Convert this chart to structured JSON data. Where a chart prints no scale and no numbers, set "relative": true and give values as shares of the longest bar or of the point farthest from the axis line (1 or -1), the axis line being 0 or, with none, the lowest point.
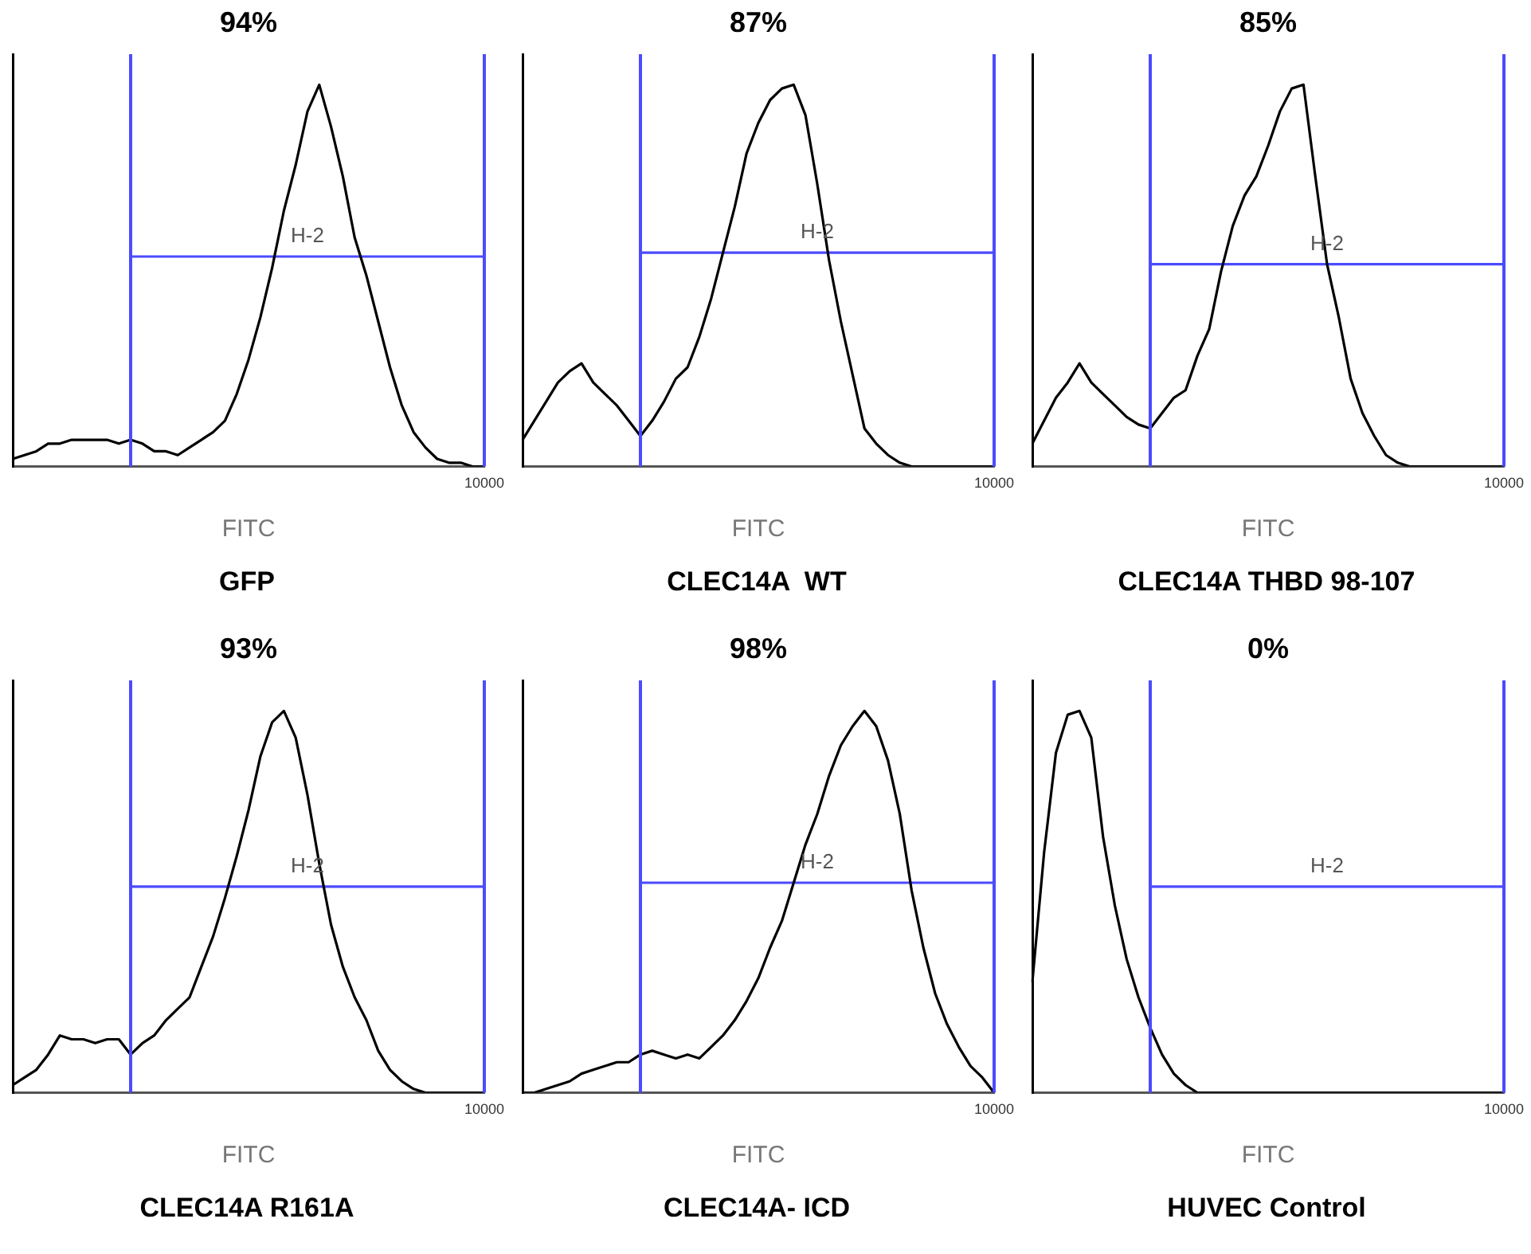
{
  "chart_data": [
    {
      "type": "line",
      "title": "GFP",
      "xlabel": "FITC",
      "relative": true,
      "grid": false,
      "legend": false,
      "marker": "none",
      "categories": [
        null,
        null,
        null,
        null,
        null,
        null,
        null,
        null,
        null,
        null,
        null,
        null,
        null,
        null,
        null,
        null,
        null,
        null,
        null,
        null,
        null,
        null,
        null,
        null,
        null,
        null,
        null,
        null,
        null,
        null,
        null,
        null,
        null,
        null,
        null,
        null,
        null,
        null,
        null,
        null,
        null
      ],
      "series": [
        {
          "color": "#000000",
          "values": [
            0.02,
            0.03,
            0.04,
            0.06,
            0.06,
            0.07,
            0.07,
            0.07,
            0.07,
            0.06,
            0.07,
            0.06,
            0.04,
            0.04,
            0.03,
            0.05,
            0.07,
            0.09,
            0.12,
            0.19,
            0.28,
            0.39,
            0.52,
            0.67,
            0.79,
            0.93,
            1,
            0.89,
            0.76,
            0.6,
            0.5,
            0.38,
            0.26,
            0.16,
            0.09,
            0.05,
            0.02,
            0.01,
            0.01,
            0,
            0
          ]
        },
        {
          "type": "line",
          "color": "#4b4bff",
          "values": [
            null,
            null,
            null,
            null,
            null,
            null,
            null,
            null,
            null,
            null,
            0.55,
            0.55,
            0.55,
            0.55,
            0.55,
            0.55,
            0.55,
            0.55,
            0.55,
            0.55,
            0.55,
            0.55,
            0.55,
            0.55,
            0.55,
            0.55,
            0.55,
            0.55,
            0.55,
            0.55,
            0.55,
            0.55,
            0.55,
            0.55,
            0.55,
            0.55,
            0.55,
            0.55,
            0.55,
            0.55,
            0.55
          ]
        }
      ],
      "annotations": [
        "94%",
        "10000",
        "H-2"
      ]
    },
    {
      "type": "line",
      "title": "CLEC14A  WT",
      "xlabel": "FITC",
      "relative": true,
      "grid": false,
      "legend": false,
      "marker": "none",
      "categories": [
        null,
        null,
        null,
        null,
        null,
        null,
        null,
        null,
        null,
        null,
        null,
        null,
        null,
        null,
        null,
        null,
        null,
        null,
        null,
        null,
        null,
        null,
        null,
        null,
        null,
        null,
        null,
        null,
        null,
        null,
        null,
        null,
        null,
        null,
        null,
        null,
        null,
        null,
        null,
        null,
        null
      ],
      "series": [
        {
          "color": "#000000",
          "values": [
            0.07,
            0.12,
            0.17,
            0.22,
            0.25,
            0.27,
            0.22,
            0.19,
            0.16,
            0.12,
            0.08,
            0.12,
            0.17,
            0.23,
            0.26,
            0.34,
            0.44,
            0.56,
            0.68,
            0.82,
            0.9,
            0.96,
            0.99,
            1,
            0.92,
            0.74,
            0.54,
            0.38,
            0.24,
            0.1,
            0.06,
            0.03,
            0.01,
            0,
            0,
            0,
            0,
            0,
            0,
            0,
            0
          ]
        },
        {
          "type": "line",
          "color": "#4b4bff",
          "values": [
            null,
            null,
            null,
            null,
            null,
            null,
            null,
            null,
            null,
            null,
            0.56,
            0.56,
            0.56,
            0.56,
            0.56,
            0.56,
            0.56,
            0.56,
            0.56,
            0.56,
            0.56,
            0.56,
            0.56,
            0.56,
            0.56,
            0.56,
            0.56,
            0.56,
            0.56,
            0.56,
            0.56,
            0.56,
            0.56,
            0.56,
            0.56,
            0.56,
            0.56,
            0.56,
            0.56,
            0.56,
            0.56
          ]
        }
      ],
      "annotations": [
        "87%",
        "10000",
        "H-2"
      ]
    },
    {
      "type": "line",
      "title": "CLEC14A THBD 98-107",
      "xlabel": "FITC",
      "relative": true,
      "grid": false,
      "legend": false,
      "marker": "none",
      "categories": [
        null,
        null,
        null,
        null,
        null,
        null,
        null,
        null,
        null,
        null,
        null,
        null,
        null,
        null,
        null,
        null,
        null,
        null,
        null,
        null,
        null,
        null,
        null,
        null,
        null,
        null,
        null,
        null,
        null,
        null,
        null,
        null,
        null,
        null,
        null,
        null,
        null,
        null,
        null,
        null,
        null
      ],
      "series": [
        {
          "color": "#000000",
          "values": [
            0.06,
            0.12,
            0.18,
            0.22,
            0.27,
            0.22,
            0.19,
            0.16,
            0.13,
            0.11,
            0.1,
            0.14,
            0.18,
            0.2,
            0.29,
            0.36,
            0.51,
            0.63,
            0.71,
            0.76,
            0.84,
            0.93,
            0.99,
            1,
            0.76,
            0.53,
            0.39,
            0.23,
            0.14,
            0.08,
            0.03,
            0.01,
            0,
            0,
            0,
            0,
            0,
            0,
            0,
            0,
            0
          ]
        },
        {
          "type": "line",
          "color": "#4b4bff",
          "values": [
            null,
            null,
            null,
            null,
            null,
            null,
            null,
            null,
            null,
            null,
            0.53,
            0.53,
            0.53,
            0.53,
            0.53,
            0.53,
            0.53,
            0.53,
            0.53,
            0.53,
            0.53,
            0.53,
            0.53,
            0.53,
            0.53,
            0.53,
            0.53,
            0.53,
            0.53,
            0.53,
            0.53,
            0.53,
            0.53,
            0.53,
            0.53,
            0.53,
            0.53,
            0.53,
            0.53,
            0.53,
            0.53
          ]
        }
      ],
      "annotations": [
        "85%",
        "10000",
        "H-2"
      ]
    },
    {
      "type": "line",
      "title": "CLEC14A R161A",
      "xlabel": "FITC",
      "relative": true,
      "grid": false,
      "legend": false,
      "marker": "none",
      "categories": [
        null,
        null,
        null,
        null,
        null,
        null,
        null,
        null,
        null,
        null,
        null,
        null,
        null,
        null,
        null,
        null,
        null,
        null,
        null,
        null,
        null,
        null,
        null,
        null,
        null,
        null,
        null,
        null,
        null,
        null,
        null,
        null,
        null,
        null,
        null,
        null,
        null,
        null,
        null,
        null,
        null
      ],
      "series": [
        {
          "color": "#000000",
          "values": [
            0.02,
            0.04,
            0.06,
            0.1,
            0.15,
            0.14,
            0.14,
            0.13,
            0.14,
            0.14,
            0.1,
            0.13,
            0.15,
            0.19,
            0.22,
            0.25,
            0.33,
            0.41,
            0.51,
            0.62,
            0.74,
            0.88,
            0.97,
            1,
            0.93,
            0.78,
            0.6,
            0.44,
            0.33,
            0.25,
            0.19,
            0.11,
            0.06,
            0.03,
            0.01,
            0,
            0,
            0,
            0,
            0,
            0
          ]
        },
        {
          "type": "line",
          "color": "#4b4bff",
          "values": [
            null,
            null,
            null,
            null,
            null,
            null,
            null,
            null,
            null,
            null,
            0.54,
            0.54,
            0.54,
            0.54,
            0.54,
            0.54,
            0.54,
            0.54,
            0.54,
            0.54,
            0.54,
            0.54,
            0.54,
            0.54,
            0.54,
            0.54,
            0.54,
            0.54,
            0.54,
            0.54,
            0.54,
            0.54,
            0.54,
            0.54,
            0.54,
            0.54,
            0.54,
            0.54,
            0.54,
            0.54,
            0.54
          ]
        }
      ],
      "annotations": [
        "93%",
        "10000",
        "H-2"
      ]
    },
    {
      "type": "line",
      "title": "CLEC14A- ICD",
      "xlabel": "FITC",
      "relative": true,
      "grid": false,
      "legend": false,
      "marker": "none",
      "categories": [
        null,
        null,
        null,
        null,
        null,
        null,
        null,
        null,
        null,
        null,
        null,
        null,
        null,
        null,
        null,
        null,
        null,
        null,
        null,
        null,
        null,
        null,
        null,
        null,
        null,
        null,
        null,
        null,
        null,
        null,
        null,
        null,
        null,
        null,
        null,
        null,
        null,
        null,
        null,
        null,
        null
      ],
      "series": [
        {
          "color": "#000000",
          "values": [
            0,
            0,
            0.01,
            0.02,
            0.03,
            0.05,
            0.06,
            0.07,
            0.08,
            0.08,
            0.1,
            0.11,
            0.1,
            0.09,
            0.1,
            0.09,
            0.12,
            0.15,
            0.19,
            0.24,
            0.3,
            0.38,
            0.45,
            0.55,
            0.65,
            0.73,
            0.83,
            0.91,
            0.96,
            1,
            0.96,
            0.87,
            0.73,
            0.53,
            0.38,
            0.26,
            0.18,
            0.12,
            0.07,
            0.04,
            0
          ]
        },
        {
          "type": "line",
          "color": "#4b4bff",
          "values": [
            null,
            null,
            null,
            null,
            null,
            null,
            null,
            null,
            null,
            null,
            0.55,
            0.55,
            0.55,
            0.55,
            0.55,
            0.55,
            0.55,
            0.55,
            0.55,
            0.55,
            0.55,
            0.55,
            0.55,
            0.55,
            0.55,
            0.55,
            0.55,
            0.55,
            0.55,
            0.55,
            0.55,
            0.55,
            0.55,
            0.55,
            0.55,
            0.55,
            0.55,
            0.55,
            0.55,
            0.55,
            0.55
          ]
        }
      ],
      "annotations": [
        "98%",
        "10000",
        "H-2"
      ]
    },
    {
      "type": "line",
      "title": "HUVEC Control",
      "xlabel": "FITC",
      "relative": true,
      "grid": false,
      "legend": false,
      "marker": "none",
      "categories": [
        null,
        null,
        null,
        null,
        null,
        null,
        null,
        null,
        null,
        null,
        null,
        null,
        null,
        null,
        null,
        null,
        null,
        null,
        null,
        null,
        null,
        null,
        null,
        null,
        null,
        null,
        null,
        null,
        null,
        null,
        null,
        null,
        null,
        null,
        null,
        null,
        null,
        null,
        null,
        null,
        null
      ],
      "series": [
        {
          "color": "#000000",
          "values": [
            0.29,
            0.63,
            0.89,
            0.99,
            1,
            0.93,
            0.67,
            0.49,
            0.35,
            0.25,
            0.17,
            0.1,
            0.05,
            0.02,
            0,
            0,
            0,
            0,
            0,
            0,
            0,
            0,
            0,
            0,
            0,
            0,
            0,
            0,
            0,
            0,
            0,
            0,
            0,
            0,
            0,
            0,
            0,
            0,
            0,
            0,
            0
          ]
        },
        {
          "type": "line",
          "color": "#4b4bff",
          "values": [
            null,
            null,
            null,
            null,
            null,
            null,
            null,
            null,
            null,
            null,
            0.54,
            0.54,
            0.54,
            0.54,
            0.54,
            0.54,
            0.54,
            0.54,
            0.54,
            0.54,
            0.54,
            0.54,
            0.54,
            0.54,
            0.54,
            0.54,
            0.54,
            0.54,
            0.54,
            0.54,
            0.54,
            0.54,
            0.54,
            0.54,
            0.54,
            0.54,
            0.54,
            0.54,
            0.54,
            0.54,
            0.54
          ]
        }
      ],
      "annotations": [
        "0%",
        "10000",
        "H-2"
      ]
    }
  ]
}
